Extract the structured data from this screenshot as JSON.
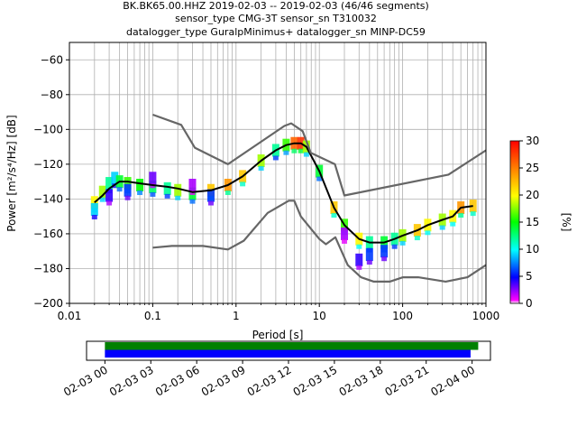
{
  "chart_data": {
    "type": "heatmap",
    "title": [
      "BK.BK65.00.HHZ   2019-02-03 -- 2019-02-03  (46/46 segments)",
      "sensor_type CMG-3T sensor_sn T310032",
      "datalogger_type GuralpMinimus+ datalogger_sn MINP-DC59"
    ],
    "xlabel": "Period [s]",
    "ylabel": "Power [m²/s⁴/Hz] [dB]",
    "xscale": "log",
    "xlim": [
      0.01,
      1000
    ],
    "ylim": [
      -200,
      -50
    ],
    "xticks": [
      0.01,
      0.1,
      1,
      10,
      100,
      1000
    ],
    "xticklabels": [
      "0.01",
      "0.1",
      "1",
      "10",
      "100",
      "1000"
    ],
    "yticks": [
      -200,
      -180,
      -160,
      -140,
      -120,
      -100,
      -80,
      -60
    ],
    "yticklabels": [
      "−200",
      "−180",
      "−160",
      "−140",
      "−120",
      "−100",
      "−80",
      "−60"
    ],
    "grid": true,
    "colorbar": {
      "label": "[%]",
      "range": [
        0,
        30
      ],
      "ticks": [
        0,
        5,
        10,
        15,
        20,
        25,
        30
      ],
      "ticklabels": [
        "0",
        "5",
        "10",
        "15",
        "20",
        "25",
        "30"
      ],
      "colormap": "pqlx"
    },
    "series": [
      {
        "name": "mean",
        "color": "#000000",
        "x": [
          0.02,
          0.025,
          0.03,
          0.04,
          0.05,
          0.07,
          0.1,
          0.15,
          0.2,
          0.3,
          0.5,
          0.8,
          1.2,
          2,
          3,
          4,
          5,
          6,
          7,
          10,
          15,
          20,
          30,
          40,
          60,
          80,
          100,
          150,
          200,
          300,
          400,
          500,
          700
        ],
        "y": [
          -142,
          -138,
          -134,
          -130,
          -130,
          -131,
          -132,
          -133,
          -134,
          -136,
          -135,
          -132,
          -127,
          -118,
          -112,
          -109,
          -108,
          -108,
          -110,
          -124,
          -145,
          -155,
          -163,
          -165,
          -165,
          -163,
          -161,
          -158,
          -155,
          -152,
          -150,
          -145,
          -144
        ]
      },
      {
        "name": "NHNM",
        "color": "#666666",
        "x": [
          0.1,
          0.17,
          0.4,
          0.8,
          1.24,
          2.4,
          4.3,
          5,
          6,
          10,
          12,
          15.6,
          21.9,
          31.6,
          45,
          70,
          101,
          154,
          328,
          600,
          1000
        ],
        "y": [
          -168,
          -167,
          -167,
          -169,
          -164,
          -148,
          -141,
          -141,
          -150,
          -163,
          -166,
          -162,
          -178,
          -185,
          -187.5,
          -187.5,
          -185,
          -185,
          -187.5,
          -185,
          -178
        ]
      },
      {
        "name": "NLNM",
        "color": "#666666",
        "x": [
          0.1,
          0.22,
          0.32,
          0.8,
          3.8,
          4.6,
          6.3,
          7.9,
          15.4,
          20,
          354.8,
          1000
        ],
        "y": [
          -91.5,
          -97.4,
          -110.5,
          -120,
          -98,
          -96.5,
          -101,
          -113.5,
          -120,
          -138,
          -126,
          -112
        ]
      }
    ],
    "mode_points": [
      [
        0.02,
        -142,
        20
      ],
      [
        0.025,
        -136,
        18
      ],
      [
        0.03,
        -131,
        12
      ],
      [
        0.035,
        -128,
        9
      ],
      [
        0.04,
        -130,
        14
      ],
      [
        0.05,
        -131,
        16
      ],
      [
        0.07,
        -132,
        15
      ],
      [
        0.1,
        -133,
        13
      ],
      [
        0.15,
        -134,
        12
      ],
      [
        0.2,
        -135,
        18
      ],
      [
        0.3,
        -137,
        14
      ],
      [
        0.5,
        -135,
        22
      ],
      [
        0.8,
        -132,
        24
      ],
      [
        1.2,
        -127,
        22
      ],
      [
        2,
        -118,
        18
      ],
      [
        3,
        -112,
        12
      ],
      [
        4,
        -109,
        16
      ],
      [
        5,
        -108,
        26
      ],
      [
        6,
        -108,
        28
      ],
      [
        7,
        -110,
        18
      ],
      [
        10,
        -124,
        14
      ],
      [
        15,
        -145,
        22
      ],
      [
        20,
        -155,
        16
      ],
      [
        30,
        -163,
        20
      ],
      [
        40,
        -165,
        12
      ],
      [
        60,
        -165,
        14
      ],
      [
        80,
        -163,
        12
      ],
      [
        100,
        -161,
        18
      ],
      [
        150,
        -158,
        22
      ],
      [
        200,
        -155,
        20
      ],
      [
        300,
        -152,
        18
      ],
      [
        400,
        -150,
        20
      ],
      [
        500,
        -145,
        24
      ],
      [
        700,
        -144,
        22
      ],
      [
        0.03,
        -138,
        4
      ],
      [
        0.05,
        -135,
        6
      ],
      [
        0.3,
        -132,
        2
      ],
      [
        0.5,
        -138,
        6
      ],
      [
        30,
        -175,
        4
      ],
      [
        40,
        -172,
        6
      ],
      [
        20,
        -160,
        2
      ],
      [
        60,
        -170,
        6
      ],
      [
        0.1,
        -128,
        3
      ],
      [
        0.02,
        -146,
        9
      ]
    ],
    "timeline": {
      "tick_labels": [
        "02-03 00",
        "02-03 03",
        "02-03 06",
        "02-03 09",
        "02-03 12",
        "02-03 15",
        "02-03 18",
        "02-03 21",
        "02-04 00"
      ],
      "tick_hours": [
        0,
        3,
        6,
        9,
        12,
        15,
        18,
        21,
        24
      ],
      "xlim_hours": [
        -1.2,
        25.2
      ],
      "bars": [
        {
          "name": "data coverage",
          "color": "#008000",
          "start": 0,
          "end": 24.4
        },
        {
          "name": "segments used",
          "color": "#0000ff",
          "start": 0,
          "end": 23.9
        }
      ]
    }
  }
}
